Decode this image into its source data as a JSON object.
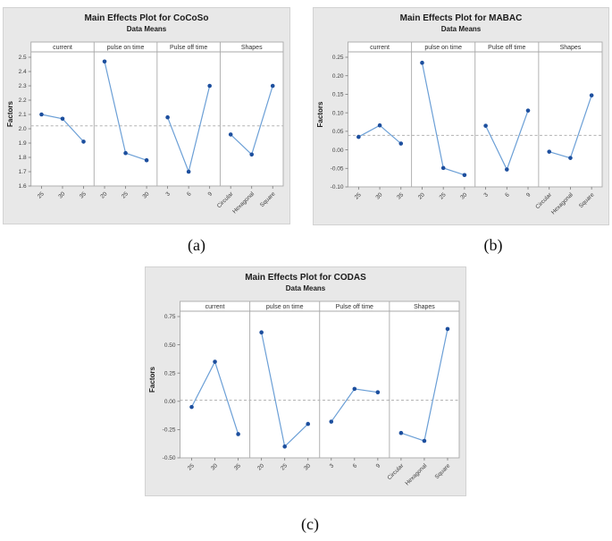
{
  "page": {
    "background": "#ffffff"
  },
  "colors": {
    "card_bg": "#e8e8e8",
    "frame": "#a9a9a9",
    "line": "#6b9fd6",
    "marker": "#1d4f9e",
    "mean_dash": "#b3b3b3",
    "tick": "#7a7a7a",
    "text": "#303030"
  },
  "chart_data": [
    {
      "id": "a",
      "type": "line",
      "title": "Main Effects Plot for CoCoSo",
      "subtitle": "Data Means",
      "ylabel": "Factors",
      "caption": "(a)",
      "legend": "none",
      "grid": false,
      "ylim": [
        1.6,
        2.5
      ],
      "yticks": [
        2.5,
        2.4,
        2.3,
        2.2,
        2.1,
        2.0,
        1.9,
        1.8,
        1.7,
        1.6
      ],
      "ytick_labels": [
        "2.5",
        "2.4",
        "2.3",
        "2.2",
        "2.1",
        "2.0",
        "1.9",
        "1.8",
        "1.7",
        "1.6"
      ],
      "mean_line": 2.02,
      "panels": [
        {
          "label": "current",
          "categories": [
            "25",
            "30",
            "35"
          ],
          "values": [
            2.1,
            2.07,
            1.91
          ]
        },
        {
          "label": "pulse on time",
          "categories": [
            "20",
            "25",
            "30"
          ],
          "values": [
            2.47,
            1.83,
            1.78
          ]
        },
        {
          "label": "Pulse off time",
          "categories": [
            "3",
            "6",
            "9"
          ],
          "values": [
            2.08,
            1.7,
            2.3
          ]
        },
        {
          "label": "Shapes",
          "categories": [
            "Circular",
            "Hexagonal",
            "Square"
          ],
          "values": [
            1.96,
            1.82,
            2.3
          ]
        }
      ]
    },
    {
      "id": "b",
      "type": "line",
      "title": "Main Effects Plot for MABAC",
      "subtitle": "Data Means",
      "ylabel": "Factors",
      "caption": "(b)",
      "legend": "none",
      "grid": false,
      "ylim": [
        -0.1,
        0.25
      ],
      "yticks": [
        0.25,
        0.2,
        0.15,
        0.1,
        0.05,
        0.0,
        -0.05,
        -0.1
      ],
      "ytick_labels": [
        "0.25",
        "0.20",
        "0.15",
        "0.10",
        "0.05",
        "0.00",
        "-0.05",
        "-0.10"
      ],
      "mean_line": 0.039,
      "panels": [
        {
          "label": "current",
          "categories": [
            "25",
            "30",
            "35"
          ],
          "values": [
            0.035,
            0.066,
            0.017
          ]
        },
        {
          "label": "pulse on time",
          "categories": [
            "20",
            "25",
            "30"
          ],
          "values": [
            0.235,
            -0.049,
            -0.068
          ]
        },
        {
          "label": "Pulse off time",
          "categories": [
            "3",
            "6",
            "9"
          ],
          "values": [
            0.065,
            -0.053,
            0.106
          ]
        },
        {
          "label": "Shapes",
          "categories": [
            "Circular",
            "Hexagonal",
            "Square"
          ],
          "values": [
            -0.005,
            -0.022,
            0.147
          ]
        }
      ]
    },
    {
      "id": "c",
      "type": "line",
      "title": "Main Effects Plot for CODAS",
      "subtitle": "Data Means",
      "ylabel": "Factors",
      "caption": "(c)",
      "legend": "none",
      "grid": false,
      "ylim": [
        -0.5,
        0.75
      ],
      "yticks": [
        0.75,
        0.5,
        0.25,
        0.0,
        -0.25,
        -0.5
      ],
      "ytick_labels": [
        "0.75",
        "0.50",
        "0.25",
        "0.00",
        "-0.25",
        "-0.50"
      ],
      "mean_line": 0.01,
      "panels": [
        {
          "label": "current",
          "categories": [
            "25",
            "30",
            "35"
          ],
          "values": [
            -0.05,
            0.35,
            -0.29
          ]
        },
        {
          "label": "pulse on time",
          "categories": [
            "20",
            "25",
            "30"
          ],
          "values": [
            0.61,
            -0.4,
            -0.2
          ]
        },
        {
          "label": "Pulse off time",
          "categories": [
            "3",
            "6",
            "9"
          ],
          "values": [
            -0.18,
            0.11,
            0.08
          ]
        },
        {
          "label": "Shapes",
          "categories": [
            "Circular",
            "Hexagonal",
            "Square"
          ],
          "values": [
            -0.28,
            -0.35,
            0.64
          ]
        }
      ]
    }
  ]
}
